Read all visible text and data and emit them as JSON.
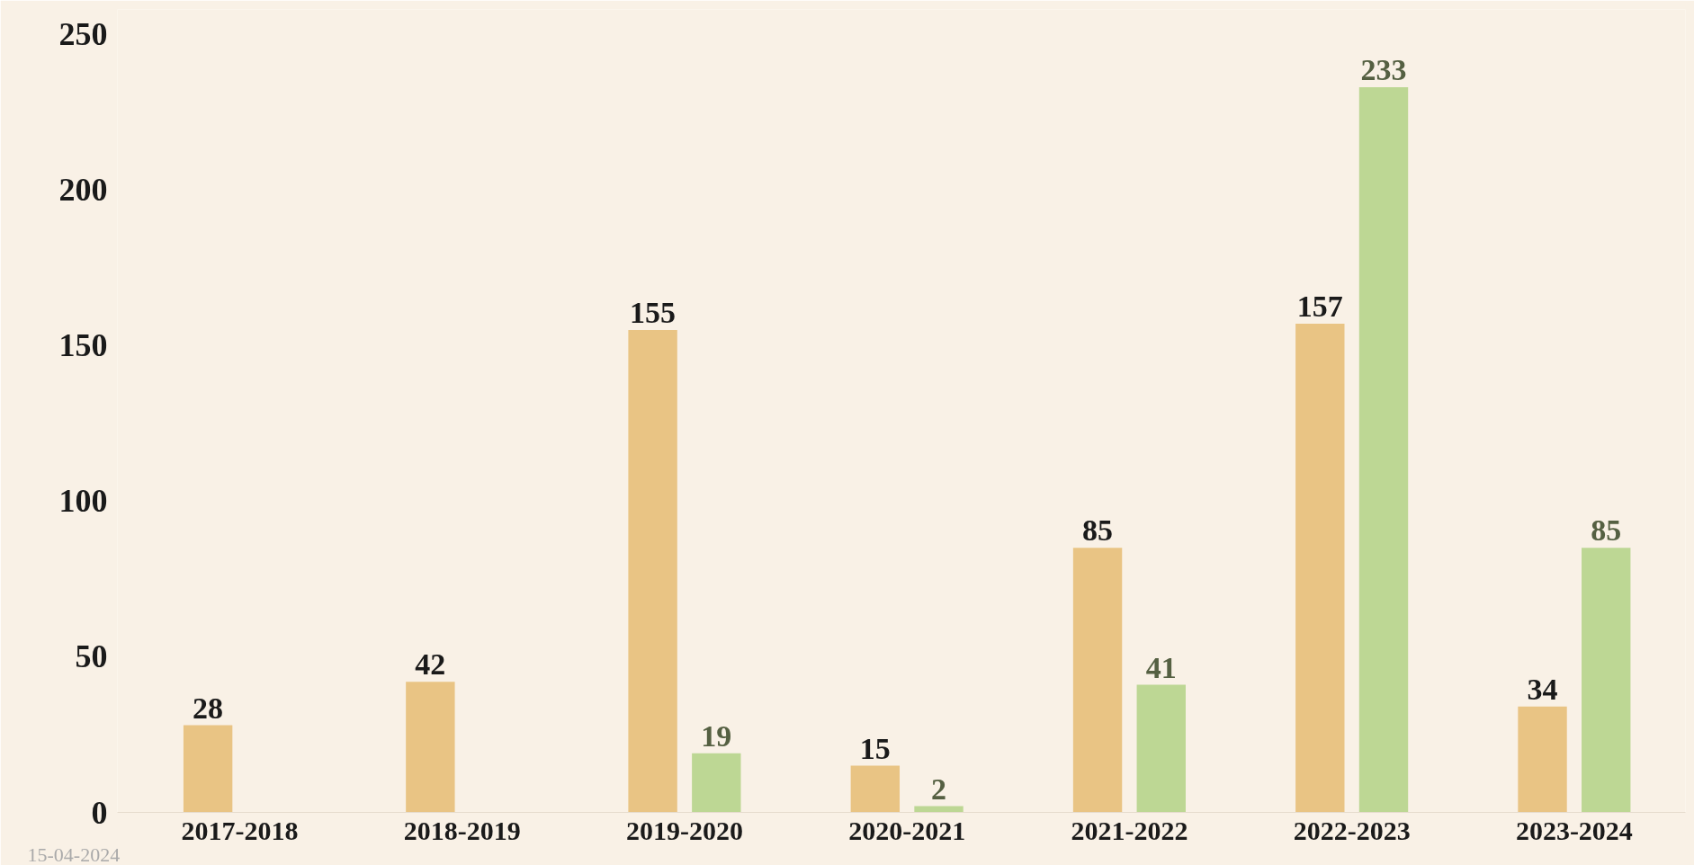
{
  "chart_data": {
    "type": "bar",
    "categories": [
      "2017-2018",
      "2018-2019",
      "2019-2020",
      "2020-2021",
      "2021-2022",
      "2022-2023",
      "2023-2024"
    ],
    "series": [
      {
        "color": "#e9c484",
        "values": [
          28,
          42,
          155,
          15,
          85,
          157,
          34
        ]
      },
      {
        "color": "#bdd794",
        "values": [
          null,
          null,
          19,
          2,
          41,
          233,
          85
        ]
      }
    ],
    "ylim": [
      0,
      258
    ],
    "yticks": [
      0,
      50,
      100,
      150,
      200,
      250
    ],
    "data_labels": true,
    "grid": false,
    "annotations": [
      "15-04-2024"
    ]
  }
}
